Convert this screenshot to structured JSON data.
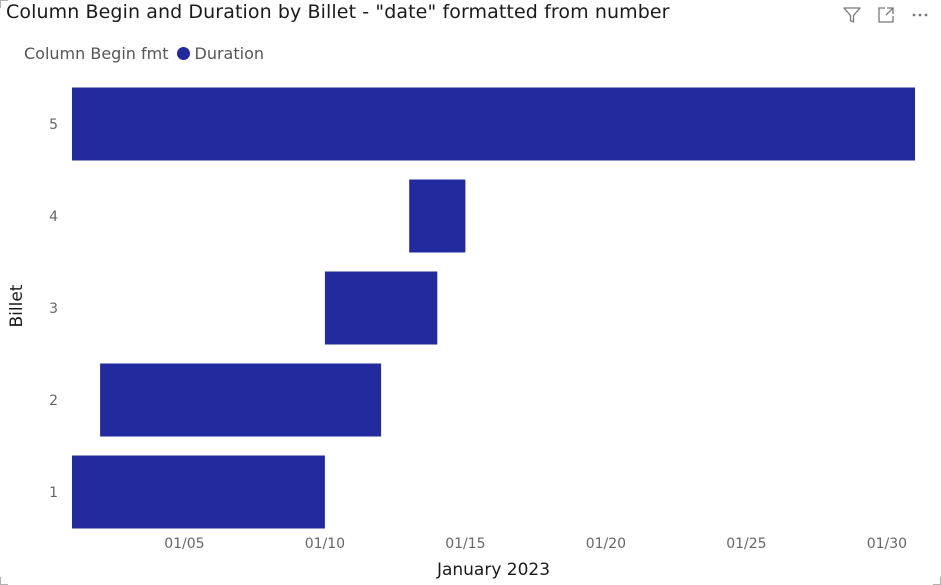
{
  "header": {
    "title": "Column Begin and Duration by Billet - \"date\" formatted from number"
  },
  "legend": {
    "title": "Column Begin fmt",
    "items": [
      {
        "label": "Duration",
        "color": "#222a9e"
      }
    ]
  },
  "icons": [
    "filter-icon",
    "focus-mode-icon",
    "more-options-icon"
  ],
  "chart_data": {
    "type": "bar",
    "orientation": "horizontal",
    "stacked": true,
    "xlabel": "January 2023",
    "ylabel": "Billet",
    "xlim": [
      "2023-01-01",
      "2023-01-31"
    ],
    "x_ticks": [
      {
        "date": "2023-01-05",
        "label": "01/05"
      },
      {
        "date": "2023-01-10",
        "label": "01/10"
      },
      {
        "date": "2023-01-15",
        "label": "01/15"
      },
      {
        "date": "2023-01-20",
        "label": "01/20"
      },
      {
        "date": "2023-01-25",
        "label": "01/25"
      },
      {
        "date": "2023-01-30",
        "label": "01/30"
      }
    ],
    "categories": [
      "5",
      "4",
      "3",
      "2",
      "1"
    ],
    "series": [
      {
        "name": "Duration",
        "color": "#222a9e",
        "values": [
          {
            "billet": "5",
            "begin": "2023-01-01",
            "end": "2023-01-31"
          },
          {
            "billet": "4",
            "begin": "2023-01-13",
            "end": "2023-01-15"
          },
          {
            "billet": "3",
            "begin": "2023-01-10",
            "end": "2023-01-14"
          },
          {
            "billet": "2",
            "begin": "2023-01-02",
            "end": "2023-01-12"
          },
          {
            "billet": "1",
            "begin": "2023-01-01",
            "end": "2023-01-10"
          }
        ]
      }
    ],
    "grid": false,
    "legend_position": "top-left"
  }
}
